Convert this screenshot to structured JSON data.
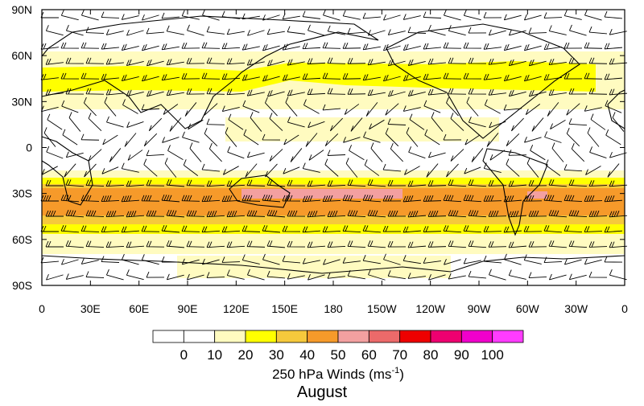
{
  "map": {
    "lat_labels": [
      "90N",
      "60N",
      "30N",
      "0",
      "30S",
      "60S",
      "90S"
    ],
    "lon_labels": [
      "0",
      "30E",
      "60E",
      "90E",
      "120E",
      "150E",
      "180",
      "150W",
      "120W",
      "90W",
      "60W",
      "30W",
      "0"
    ]
  },
  "colorbar": {
    "colors": [
      "#ffffff",
      "#ffffff",
      "#fffbc0",
      "#ffff00",
      "#f6c93c",
      "#f69a2a",
      "#f3a0a0",
      "#ec6a6a",
      "#ee0000",
      "#ee0070",
      "#f000cc",
      "#ff3cff"
    ],
    "labels": [
      0,
      10,
      20,
      30,
      40,
      50,
      60,
      70,
      80,
      90,
      100
    ],
    "title_main": "250 hPa Winds (ms",
    "title_sup": "-1",
    "title_end": ")"
  },
  "caption": "August"
}
